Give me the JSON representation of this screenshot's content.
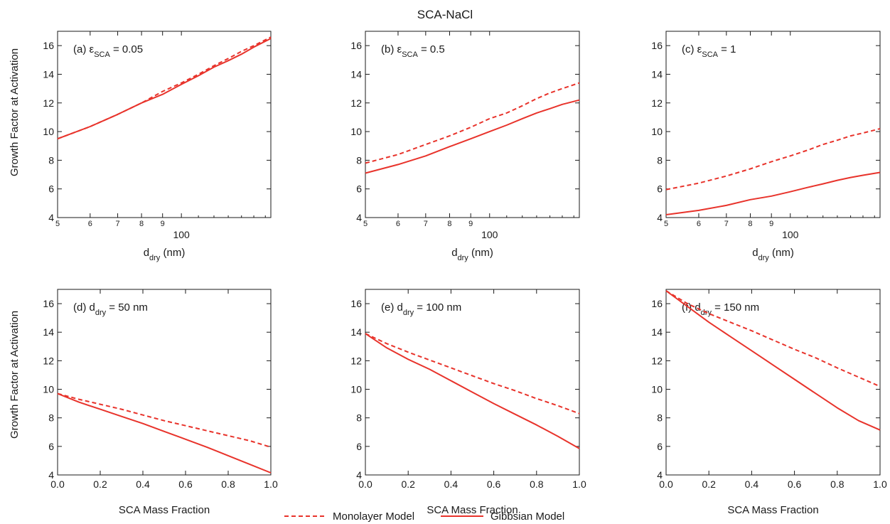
{
  "figure": {
    "title": "SCA-NaCl",
    "y_axis_label": "Growth Factor at Activation",
    "colors": {
      "series": "#e8332b",
      "axis": "#1a1a1a"
    },
    "legend": {
      "placement": "bottom-center",
      "items": [
        {
          "label": "Monolayer Model",
          "style": "dashed"
        },
        {
          "label": "Gibbsian Model",
          "style": "solid"
        }
      ]
    }
  },
  "chart_data": [
    {
      "type": "line",
      "panel": "a",
      "annotation": {
        "prefix": "(a) ε",
        "sub": "SCA",
        "suffix": " = 0.05"
      },
      "xlabel": {
        "main": "d",
        "sub": "dry",
        "rest": " (nm)"
      },
      "xscale": "log",
      "xlim": [
        50,
        165
      ],
      "ylim": [
        4,
        17
      ],
      "xticks": [
        {
          "v": 50,
          "label": "5",
          "size": "small"
        },
        {
          "v": 60,
          "label": "6",
          "size": "small"
        },
        {
          "v": 70,
          "label": "7",
          "size": "small"
        },
        {
          "v": 80,
          "label": "8",
          "size": "small"
        },
        {
          "v": 90,
          "label": "9",
          "size": "small"
        },
        {
          "v": 100,
          "label": "100",
          "size": "large"
        }
      ],
      "yticks": [
        4,
        6,
        8,
        10,
        12,
        14,
        16
      ],
      "series": [
        {
          "name": "Monolayer Model",
          "style": "dashed",
          "points": [
            [
              50,
              9.5
            ],
            [
              60,
              10.35
            ],
            [
              70,
              11.2
            ],
            [
              80,
              12.0
            ],
            [
              90,
              12.8
            ],
            [
              100,
              13.4
            ],
            [
              110,
              14.0
            ],
            [
              120,
              14.6
            ],
            [
              130,
              15.1
            ],
            [
              140,
              15.6
            ],
            [
              150,
              16.0
            ],
            [
              165,
              16.6
            ]
          ]
        },
        {
          "name": "Gibbsian Model",
          "style": "solid",
          "points": [
            [
              50,
              9.5
            ],
            [
              60,
              10.35
            ],
            [
              70,
              11.2
            ],
            [
              80,
              12.0
            ],
            [
              90,
              12.6
            ],
            [
              100,
              13.3
            ],
            [
              110,
              13.9
            ],
            [
              120,
              14.5
            ],
            [
              130,
              14.95
            ],
            [
              140,
              15.4
            ],
            [
              150,
              15.9
            ],
            [
              165,
              16.5
            ]
          ]
        }
      ]
    },
    {
      "type": "line",
      "panel": "b",
      "annotation": {
        "prefix": "(b) ε",
        "sub": "SCA",
        "suffix": " = 0.5"
      },
      "xlabel": {
        "main": "d",
        "sub": "dry",
        "rest": " (nm)"
      },
      "xscale": "log",
      "xlim": [
        50,
        165
      ],
      "ylim": [
        4,
        17
      ],
      "xticks": [
        {
          "v": 50,
          "label": "5",
          "size": "small"
        },
        {
          "v": 60,
          "label": "6",
          "size": "small"
        },
        {
          "v": 70,
          "label": "7",
          "size": "small"
        },
        {
          "v": 80,
          "label": "8",
          "size": "small"
        },
        {
          "v": 90,
          "label": "9",
          "size": "small"
        },
        {
          "v": 100,
          "label": "100",
          "size": "large"
        }
      ],
      "yticks": [
        4,
        6,
        8,
        10,
        12,
        14,
        16
      ],
      "series": [
        {
          "name": "Monolayer Model",
          "style": "dashed",
          "points": [
            [
              50,
              7.8
            ],
            [
              60,
              8.4
            ],
            [
              70,
              9.1
            ],
            [
              80,
              9.7
            ],
            [
              90,
              10.3
            ],
            [
              100,
              10.9
            ],
            [
              110,
              11.3
            ],
            [
              120,
              11.8
            ],
            [
              130,
              12.3
            ],
            [
              140,
              12.7
            ],
            [
              150,
              13.0
            ],
            [
              165,
              13.4
            ]
          ]
        },
        {
          "name": "Gibbsian Model",
          "style": "solid",
          "points": [
            [
              50,
              7.1
            ],
            [
              60,
              7.7
            ],
            [
              70,
              8.3
            ],
            [
              80,
              8.95
            ],
            [
              90,
              9.5
            ],
            [
              100,
              10.0
            ],
            [
              110,
              10.45
            ],
            [
              120,
              10.9
            ],
            [
              130,
              11.3
            ],
            [
              140,
              11.6
            ],
            [
              150,
              11.9
            ],
            [
              165,
              12.2
            ]
          ]
        }
      ]
    },
    {
      "type": "line",
      "panel": "c",
      "annotation": {
        "prefix": "(c) ε",
        "sub": "SCA",
        "suffix": " = 1"
      },
      "xlabel": {
        "main": "d",
        "sub": "dry",
        "rest": " (nm)"
      },
      "xscale": "log",
      "xlim": [
        50,
        165
      ],
      "ylim": [
        4,
        17
      ],
      "xticks": [
        {
          "v": 50,
          "label": "5",
          "size": "small"
        },
        {
          "v": 60,
          "label": "6",
          "size": "small"
        },
        {
          "v": 70,
          "label": "7",
          "size": "small"
        },
        {
          "v": 80,
          "label": "8",
          "size": "small"
        },
        {
          "v": 90,
          "label": "9",
          "size": "small"
        },
        {
          "v": 100,
          "label": "100",
          "size": "large"
        }
      ],
      "yticks": [
        4,
        6,
        8,
        10,
        12,
        14,
        16
      ],
      "series": [
        {
          "name": "Monolayer Model",
          "style": "dashed",
          "points": [
            [
              50,
              5.95
            ],
            [
              60,
              6.4
            ],
            [
              70,
              6.9
            ],
            [
              80,
              7.4
            ],
            [
              90,
              7.9
            ],
            [
              100,
              8.3
            ],
            [
              110,
              8.7
            ],
            [
              120,
              9.1
            ],
            [
              130,
              9.4
            ],
            [
              140,
              9.7
            ],
            [
              150,
              9.9
            ],
            [
              165,
              10.2
            ]
          ]
        },
        {
          "name": "Gibbsian Model",
          "style": "solid",
          "points": [
            [
              50,
              4.2
            ],
            [
              60,
              4.5
            ],
            [
              70,
              4.85
            ],
            [
              80,
              5.25
            ],
            [
              90,
              5.5
            ],
            [
              100,
              5.8
            ],
            [
              110,
              6.1
            ],
            [
              120,
              6.35
            ],
            [
              130,
              6.6
            ],
            [
              140,
              6.8
            ],
            [
              150,
              6.95
            ],
            [
              165,
              7.15
            ]
          ]
        }
      ]
    },
    {
      "type": "line",
      "panel": "d",
      "annotation": {
        "prefix": "(d) d",
        "sub": "dry",
        "suffix": " = 50 nm"
      },
      "xlabel": {
        "main": "SCA Mass Fraction",
        "sub": "",
        "rest": ""
      },
      "xscale": "linear",
      "xlim": [
        0,
        1
      ],
      "ylim": [
        4,
        17
      ],
      "xticks": [
        {
          "v": 0,
          "label": "0.0"
        },
        {
          "v": 0.2,
          "label": "0.2"
        },
        {
          "v": 0.4,
          "label": "0.4"
        },
        {
          "v": 0.6,
          "label": "0.6"
        },
        {
          "v": 0.8,
          "label": "0.8"
        },
        {
          "v": 1.0,
          "label": "1.0"
        }
      ],
      "yticks": [
        4,
        6,
        8,
        10,
        12,
        14,
        16
      ],
      "series": [
        {
          "name": "Monolayer Model",
          "style": "dashed",
          "points": [
            [
              0,
              9.7
            ],
            [
              0.1,
              9.3
            ],
            [
              0.2,
              8.95
            ],
            [
              0.3,
              8.6
            ],
            [
              0.4,
              8.2
            ],
            [
              0.5,
              7.8
            ],
            [
              0.6,
              7.45
            ],
            [
              0.7,
              7.1
            ],
            [
              0.8,
              6.75
            ],
            [
              0.9,
              6.4
            ],
            [
              1.0,
              5.95
            ]
          ]
        },
        {
          "name": "Gibbsian Model",
          "style": "solid",
          "points": [
            [
              0,
              9.7
            ],
            [
              0.1,
              9.1
            ],
            [
              0.2,
              8.6
            ],
            [
              0.3,
              8.1
            ],
            [
              0.4,
              7.6
            ],
            [
              0.5,
              7.05
            ],
            [
              0.6,
              6.5
            ],
            [
              0.7,
              5.95
            ],
            [
              0.8,
              5.35
            ],
            [
              0.9,
              4.75
            ],
            [
              1.0,
              4.15
            ]
          ]
        }
      ]
    },
    {
      "type": "line",
      "panel": "e",
      "annotation": {
        "prefix": "(e) d",
        "sub": "dry",
        "suffix": " = 100 nm"
      },
      "xlabel": {
        "main": "SCA Mass Fraction",
        "sub": "",
        "rest": ""
      },
      "xscale": "linear",
      "xlim": [
        0,
        1
      ],
      "ylim": [
        4,
        17
      ],
      "xticks": [
        {
          "v": 0,
          "label": "0.0"
        },
        {
          "v": 0.2,
          "label": "0.2"
        },
        {
          "v": 0.4,
          "label": "0.4"
        },
        {
          "v": 0.6,
          "label": "0.6"
        },
        {
          "v": 0.8,
          "label": "0.8"
        },
        {
          "v": 1.0,
          "label": "1.0"
        }
      ],
      "yticks": [
        4,
        6,
        8,
        10,
        12,
        14,
        16
      ],
      "series": [
        {
          "name": "Monolayer Model",
          "style": "dashed",
          "points": [
            [
              0,
              13.9
            ],
            [
              0.1,
              13.2
            ],
            [
              0.2,
              12.6
            ],
            [
              0.3,
              12.05
            ],
            [
              0.4,
              11.5
            ],
            [
              0.5,
              10.95
            ],
            [
              0.6,
              10.4
            ],
            [
              0.7,
              9.9
            ],
            [
              0.8,
              9.35
            ],
            [
              0.9,
              8.85
            ],
            [
              1.0,
              8.3
            ]
          ]
        },
        {
          "name": "Gibbsian Model",
          "style": "solid",
          "points": [
            [
              0,
              13.9
            ],
            [
              0.1,
              12.9
            ],
            [
              0.2,
              12.1
            ],
            [
              0.3,
              11.4
            ],
            [
              0.4,
              10.6
            ],
            [
              0.5,
              9.8
            ],
            [
              0.6,
              9.0
            ],
            [
              0.7,
              8.25
            ],
            [
              0.8,
              7.5
            ],
            [
              0.9,
              6.7
            ],
            [
              1.0,
              5.85
            ]
          ]
        }
      ]
    },
    {
      "type": "line",
      "panel": "f",
      "annotation": {
        "prefix": "(f) d",
        "sub": "dry",
        "suffix": " = 150 nm"
      },
      "xlabel": {
        "main": "SCA Mass Fraction",
        "sub": "",
        "rest": ""
      },
      "xscale": "linear",
      "xlim": [
        0,
        1
      ],
      "ylim": [
        4,
        17
      ],
      "xticks": [
        {
          "v": 0,
          "label": "0.0"
        },
        {
          "v": 0.2,
          "label": "0.2"
        },
        {
          "v": 0.4,
          "label": "0.4"
        },
        {
          "v": 0.6,
          "label": "0.6"
        },
        {
          "v": 0.8,
          "label": "0.8"
        },
        {
          "v": 1.0,
          "label": "1.0"
        }
      ],
      "yticks": [
        4,
        6,
        8,
        10,
        12,
        14,
        16
      ],
      "series": [
        {
          "name": "Monolayer Model",
          "style": "dashed",
          "points": [
            [
              0,
              16.9
            ],
            [
              0.1,
              16.0
            ],
            [
              0.2,
              15.3
            ],
            [
              0.3,
              14.7
            ],
            [
              0.4,
              14.1
            ],
            [
              0.5,
              13.45
            ],
            [
              0.6,
              12.8
            ],
            [
              0.7,
              12.2
            ],
            [
              0.8,
              11.5
            ],
            [
              0.9,
              10.85
            ],
            [
              1.0,
              10.2
            ]
          ]
        },
        {
          "name": "Gibbsian Model",
          "style": "solid",
          "points": [
            [
              0,
              16.9
            ],
            [
              0.1,
              15.8
            ],
            [
              0.2,
              14.7
            ],
            [
              0.3,
              13.7
            ],
            [
              0.4,
              12.7
            ],
            [
              0.5,
              11.7
            ],
            [
              0.6,
              10.7
            ],
            [
              0.7,
              9.7
            ],
            [
              0.8,
              8.7
            ],
            [
              0.9,
              7.8
            ],
            [
              1.0,
              7.15
            ]
          ]
        }
      ]
    }
  ]
}
